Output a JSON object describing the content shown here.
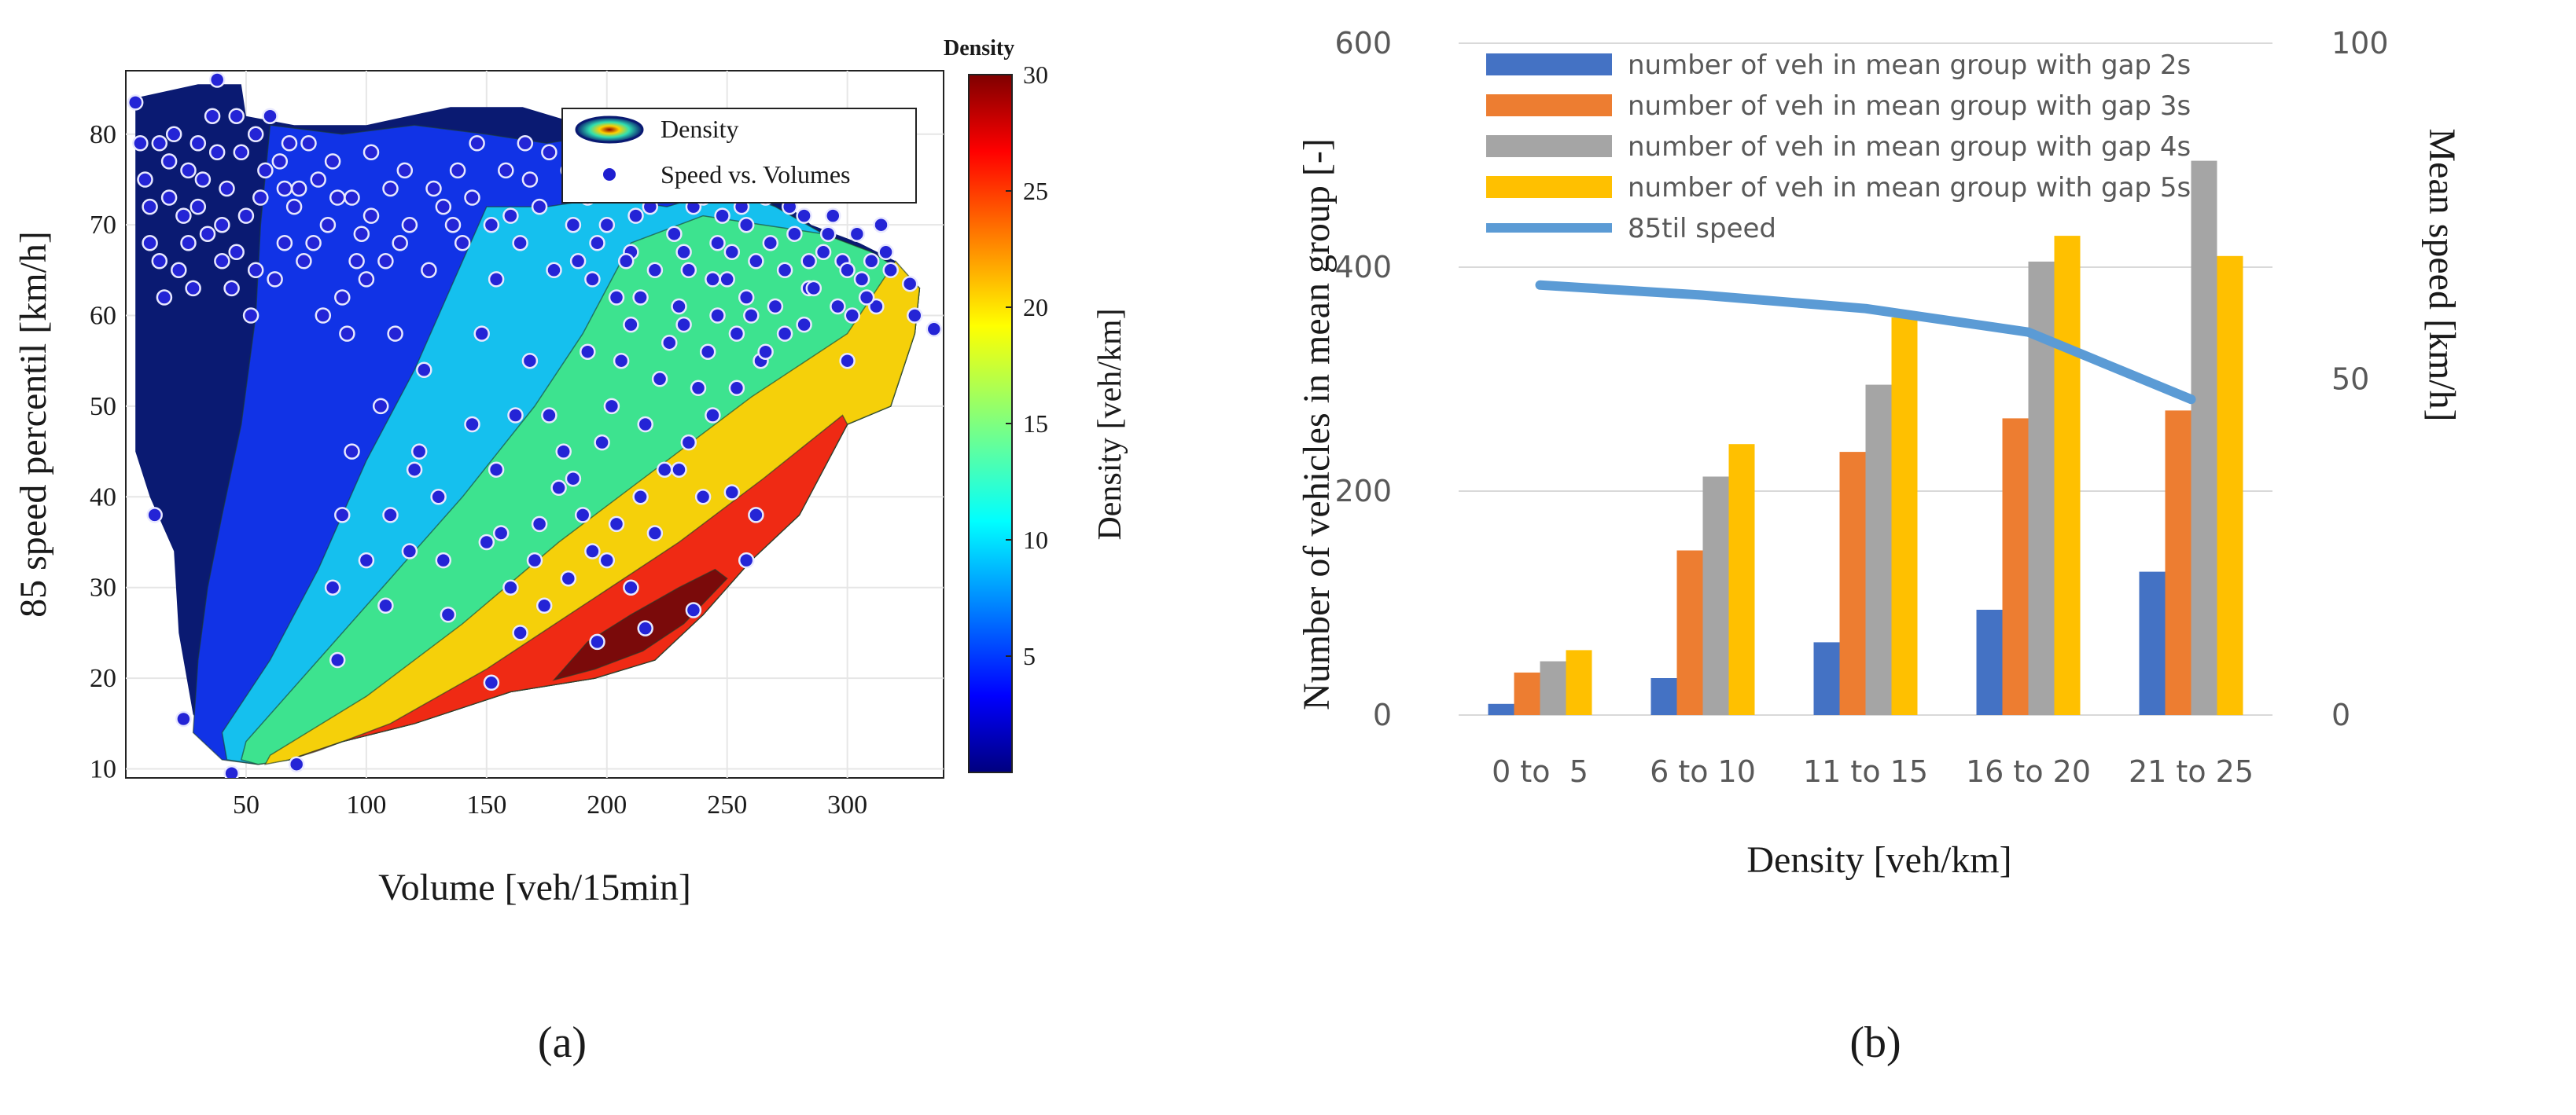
{
  "figure": {
    "panel_a_label": "(a)",
    "panel_b_label": "(b)"
  },
  "chart_data": [
    {
      "type": "scatter",
      "subtype": "filled-contour-with-scatter",
      "title": "",
      "xlabel": "Volume [veh/15min]",
      "ylabel": "85 speed percentil [km/h]",
      "xlim": [
        0,
        340
      ],
      "ylim": [
        9,
        87
      ],
      "x_ticks": [
        50,
        100,
        150,
        200,
        250,
        300
      ],
      "y_ticks": [
        10,
        20,
        30,
        40,
        50,
        60,
        70,
        80
      ],
      "grid": true,
      "legend": {
        "position": "top-right",
        "entries": [
          "Density",
          "Speed vs. Volumes"
        ]
      },
      "colorbar": {
        "title": "Density",
        "label": "Density [veh/km]",
        "range": [
          0,
          30
        ],
        "ticks": [
          5,
          10,
          15,
          20,
          25,
          30
        ]
      },
      "contour_levels": [
        {
          "density": 2,
          "color": "#0a1a72"
        },
        {
          "density": 6,
          "color": "#1133e6"
        },
        {
          "density": 10,
          "color": "#15c0ee"
        },
        {
          "density": 14,
          "color": "#3de38f"
        },
        {
          "density": 18,
          "color": "#f5d00a"
        },
        {
          "density": 22,
          "color": "#ef2a14"
        },
        {
          "density": 26,
          "color": "#7a0a0a"
        }
      ],
      "scatter_points": [
        [
          4,
          83.5
        ],
        [
          12,
          38
        ],
        [
          24,
          15.5
        ],
        [
          38,
          86
        ],
        [
          44,
          9.5
        ],
        [
          71,
          10.5
        ],
        [
          152,
          19.5
        ],
        [
          196,
          24
        ],
        [
          216,
          25.5
        ],
        [
          236,
          27.5
        ],
        [
          258,
          33
        ],
        [
          262,
          38
        ],
        [
          252,
          40.5
        ],
        [
          300,
          55
        ],
        [
          312,
          61
        ],
        [
          318,
          65
        ],
        [
          326,
          63.5
        ],
        [
          336,
          58.5
        ],
        [
          328,
          60
        ],
        [
          306,
          64
        ],
        [
          298,
          66
        ],
        [
          284,
          63
        ],
        [
          274,
          58
        ],
        [
          264,
          55
        ],
        [
          254,
          52
        ],
        [
          244,
          49
        ],
        [
          234,
          46
        ],
        [
          224,
          43
        ],
        [
          214,
          40
        ],
        [
          204,
          37
        ],
        [
          194,
          34
        ],
        [
          184,
          31
        ],
        [
          174,
          28
        ],
        [
          164,
          25
        ],
        [
          86,
          30
        ],
        [
          90,
          38
        ],
        [
          88,
          22
        ],
        [
          108,
          28
        ],
        [
          118,
          34
        ],
        [
          122,
          45
        ],
        [
          132,
          33
        ],
        [
          134,
          27
        ],
        [
          144,
          48
        ],
        [
          154,
          43
        ],
        [
          156,
          36
        ],
        [
          162,
          49
        ],
        [
          168,
          55
        ],
        [
          172,
          37
        ],
        [
          176,
          49
        ],
        [
          182,
          45
        ],
        [
          186,
          42
        ],
        [
          192,
          56
        ],
        [
          198,
          46
        ],
        [
          202,
          50
        ],
        [
          206,
          55
        ],
        [
          210,
          59
        ],
        [
          214,
          62
        ],
        [
          216,
          48
        ],
        [
          222,
          53
        ],
        [
          226,
          57
        ],
        [
          230,
          61
        ],
        [
          234,
          65
        ],
        [
          238,
          52
        ],
        [
          242,
          56
        ],
        [
          246,
          60
        ],
        [
          250,
          64
        ],
        [
          254,
          58
        ],
        [
          258,
          62
        ],
        [
          262,
          66
        ],
        [
          266,
          56
        ],
        [
          270,
          61
        ],
        [
          274,
          65
        ],
        [
          278,
          69
        ],
        [
          282,
          59
        ],
        [
          286,
          63
        ],
        [
          290,
          67
        ],
        [
          294,
          71
        ],
        [
          296,
          61
        ],
        [
          300,
          65
        ],
        [
          304,
          69
        ],
        [
          310,
          66
        ],
        [
          314,
          70
        ],
        [
          258,
          70
        ],
        [
          266,
          73
        ],
        [
          274,
          76
        ],
        [
          282,
          71
        ],
        [
          288,
          74
        ],
        [
          246,
          68
        ],
        [
          236,
          72
        ],
        [
          228,
          69
        ],
        [
          218,
          72
        ],
        [
          210,
          67
        ],
        [
          200,
          70
        ],
        [
          192,
          73
        ],
        [
          184,
          76
        ],
        [
          176,
          78
        ],
        [
          168,
          75
        ],
        [
          160,
          71
        ],
        [
          154,
          64
        ],
        [
          148,
          58
        ],
        [
          140,
          68
        ],
        [
          132,
          72
        ],
        [
          126,
          65
        ],
        [
          118,
          70
        ],
        [
          110,
          74
        ],
        [
          102,
          78
        ],
        [
          96,
          66
        ],
        [
          90,
          62
        ],
        [
          84,
          70
        ],
        [
          80,
          75
        ],
        [
          76,
          79
        ],
        [
          70,
          72
        ],
        [
          66,
          68
        ],
        [
          62,
          64
        ],
        [
          58,
          76
        ],
        [
          54,
          80
        ],
        [
          50,
          71
        ],
        [
          46,
          67
        ],
        [
          42,
          74
        ],
        [
          38,
          78
        ],
        [
          34,
          69
        ],
        [
          30,
          72
        ],
        [
          26,
          76
        ],
        [
          22,
          65
        ],
        [
          18,
          73
        ],
        [
          14,
          79
        ],
        [
          10,
          68
        ],
        [
          8,
          75
        ],
        [
          16,
          62
        ],
        [
          20,
          80
        ],
        [
          28,
          63
        ],
        [
          36,
          82
        ],
        [
          44,
          63
        ],
        [
          52,
          60
        ],
        [
          60,
          82
        ],
        [
          68,
          79
        ],
        [
          74,
          66
        ],
        [
          82,
          60
        ],
        [
          92,
          58
        ],
        [
          100,
          64
        ],
        [
          106,
          50
        ],
        [
          112,
          58
        ],
        [
          124,
          54
        ],
        [
          138,
          76
        ],
        [
          146,
          79
        ],
        [
          158,
          76
        ],
        [
          166,
          79
        ],
        [
          188,
          66
        ],
        [
          196,
          68
        ],
        [
          204,
          62
        ],
        [
          212,
          71
        ],
        [
          220,
          65
        ],
        [
          224,
          75
        ],
        [
          232,
          59
        ],
        [
          240,
          73
        ],
        [
          248,
          71
        ],
        [
          252,
          67
        ],
        [
          260,
          60
        ],
        [
          268,
          68
        ],
        [
          276,
          72
        ],
        [
          284,
          66
        ],
        [
          292,
          69
        ],
        [
          302,
          60
        ],
        [
          308,
          62
        ],
        [
          316,
          67
        ],
        [
          240,
          40
        ],
        [
          230,
          43
        ],
        [
          220,
          36
        ],
        [
          210,
          30
        ],
        [
          200,
          33
        ],
        [
          190,
          38
        ],
        [
          180,
          41
        ],
        [
          170,
          33
        ],
        [
          160,
          30
        ],
        [
          150,
          35
        ],
        [
          130,
          40
        ],
        [
          120,
          43
        ],
        [
          110,
          38
        ],
        [
          100,
          33
        ],
        [
          94,
          45
        ],
        [
          24,
          71
        ],
        [
          32,
          75
        ],
        [
          40,
          70
        ],
        [
          48,
          78
        ],
        [
          56,
          73
        ],
        [
          64,
          77
        ],
        [
          72,
          74
        ],
        [
          86,
          77
        ],
        [
          94,
          73
        ],
        [
          102,
          71
        ],
        [
          114,
          68
        ],
        [
          128,
          74
        ],
        [
          136,
          70
        ],
        [
          144,
          73
        ],
        [
          152,
          70
        ],
        [
          164,
          68
        ],
        [
          172,
          72
        ],
        [
          178,
          65
        ],
        [
          186,
          70
        ],
        [
          194,
          64
        ],
        [
          202,
          74
        ],
        [
          208,
          66
        ],
        [
          232,
          67
        ],
        [
          244,
          64
        ],
        [
          256,
          72
        ],
        [
          14,
          66
        ],
        [
          26,
          68
        ],
        [
          40,
          66
        ],
        [
          54,
          65
        ],
        [
          66,
          74
        ],
        [
          78,
          68
        ],
        [
          88,
          73
        ],
        [
          98,
          69
        ],
        [
          108,
          66
        ],
        [
          116,
          76
        ],
        [
          6,
          79
        ],
        [
          10,
          72
        ],
        [
          18,
          77
        ],
        [
          30,
          79
        ],
        [
          46,
          82
        ]
      ]
    },
    {
      "type": "bar",
      "subtype": "grouped-bar-with-line-secondary-axis",
      "title": "",
      "xlabel": "Density [veh/km]",
      "ylabel": "Number of vehicles in mean group [-]",
      "y2label": "Mean speed [km/h]",
      "categories": [
        "0 to  5",
        "6 to 10",
        "11 to 15",
        "16 to 20",
        "21 to 25"
      ],
      "ylim": [
        0,
        600
      ],
      "y_ticks": [
        0,
        200,
        400,
        600
      ],
      "y2lim": [
        0,
        100
      ],
      "y2_ticks": [
        0,
        50,
        100
      ],
      "grid": true,
      "legend": {
        "position": "top-left"
      },
      "series": [
        {
          "name": "number of veh in mean group with gap 2s",
          "color": "#4472c4",
          "axis": "left",
          "values": [
            10,
            33,
            65,
            94,
            128
          ]
        },
        {
          "name": "number of veh in mean group with gap 3s",
          "color": "#ed7d31",
          "axis": "left",
          "values": [
            38,
            147,
            235,
            265,
            272
          ]
        },
        {
          "name": "number of veh in mean group with gap 4s",
          "color": "#a5a5a5",
          "axis": "left",
          "values": [
            48,
            213,
            295,
            405,
            495
          ]
        },
        {
          "name": "number of veh in mean group with gap 5s",
          "color": "#ffc000",
          "axis": "left",
          "values": [
            58,
            242,
            355,
            428,
            410
          ]
        }
      ],
      "line_series": [
        {
          "name": "85til speed",
          "color": "#5b9bd5",
          "axis": "right",
          "values": [
            64,
            62.5,
            60.5,
            57,
            47
          ]
        }
      ]
    }
  ]
}
